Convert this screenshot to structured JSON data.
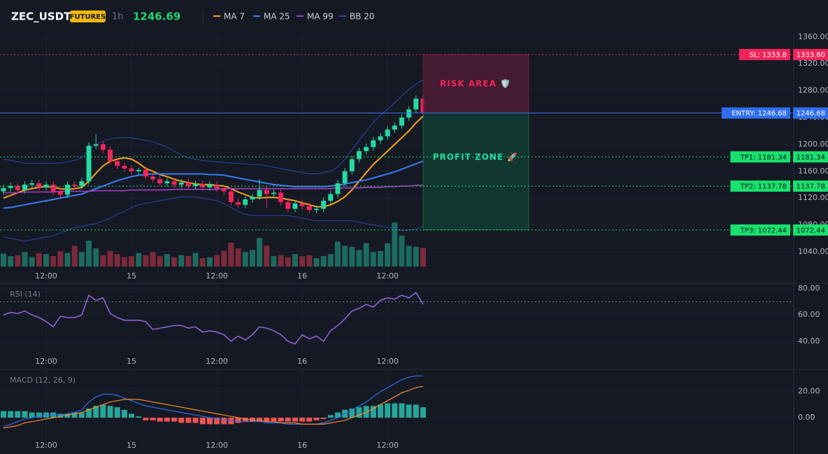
{
  "header": {
    "symbol": "ZEC_USDT",
    "badge": "FUTURES",
    "interval": "1h",
    "price": "1246.69"
  },
  "chart_data": [
    {
      "type": "candlestick",
      "categories": [
        null,
        null,
        null,
        null,
        null,
        null,
        "12:00",
        null,
        null,
        null,
        null,
        null,
        null,
        null,
        null,
        null,
        null,
        null,
        "15",
        null,
        null,
        null,
        null,
        null,
        null,
        null,
        null,
        null,
        null,
        null,
        "12:00",
        null,
        null,
        null,
        null,
        null,
        null,
        null,
        null,
        null,
        null,
        null,
        "16",
        null,
        null,
        null,
        null,
        null,
        null,
        null,
        null,
        null,
        null,
        null,
        "12:00",
        null,
        null,
        null,
        null,
        null
      ],
      "open": [
        1130,
        1135,
        1138,
        1132,
        1140,
        1142,
        1136,
        1140,
        1130,
        1125,
        1140,
        1138,
        1145,
        1198,
        1200,
        1192,
        1175,
        1168,
        1164,
        1160,
        1162,
        1152,
        1148,
        1142,
        1145,
        1140,
        1143,
        1138,
        1141,
        1136,
        1140,
        1134,
        1130,
        1114,
        1110,
        1118,
        1122,
        1132,
        1126,
        1128,
        1114,
        1104,
        1112,
        1108,
        1102,
        1104,
        1116,
        1126,
        1142,
        1160,
        1178,
        1190,
        1196,
        1206,
        1212,
        1222,
        1228,
        1240,
        1252,
        1268
      ],
      "high": [
        1140,
        1143,
        1143,
        1145,
        1147,
        1147,
        1145,
        1145,
        1135,
        1145,
        1145,
        1150,
        1203,
        1215,
        1205,
        1197,
        1180,
        1173,
        1169,
        1165,
        1167,
        1157,
        1153,
        1150,
        1150,
        1148,
        1148,
        1146,
        1146,
        1145,
        1145,
        1139,
        1135,
        1119,
        1123,
        1127,
        1148,
        1137,
        1133,
        1133,
        1119,
        1117,
        1117,
        1113,
        1109,
        1121,
        1131,
        1147,
        1165,
        1183,
        1195,
        1201,
        1211,
        1217,
        1227,
        1233,
        1245,
        1257,
        1273,
        1275
      ],
      "low": [
        1125,
        1130,
        1127,
        1127,
        1135,
        1131,
        1131,
        1125,
        1120,
        1120,
        1133,
        1133,
        1140,
        1193,
        1187,
        1170,
        1163,
        1159,
        1155,
        1155,
        1147,
        1143,
        1137,
        1137,
        1135,
        1135,
        1133,
        1133,
        1131,
        1131,
        1129,
        1125,
        1109,
        1105,
        1105,
        1113,
        1117,
        1105,
        1121,
        1109,
        1099,
        1099,
        1103,
        1097,
        1097,
        1099,
        1111,
        1121,
        1137,
        1155,
        1173,
        1185,
        1191,
        1201,
        1207,
        1217,
        1223,
        1235,
        1247,
        1241
      ],
      "close": [
        1135,
        1138,
        1132,
        1140,
        1142,
        1136,
        1140,
        1130,
        1125,
        1140,
        1138,
        1145,
        1198,
        1200,
        1192,
        1175,
        1168,
        1164,
        1160,
        1162,
        1152,
        1148,
        1142,
        1145,
        1140,
        1143,
        1138,
        1141,
        1136,
        1140,
        1134,
        1130,
        1114,
        1110,
        1118,
        1122,
        1132,
        1126,
        1128,
        1114,
        1104,
        1112,
        1108,
        1102,
        1104,
        1116,
        1126,
        1142,
        1160,
        1178,
        1190,
        1196,
        1206,
        1212,
        1222,
        1228,
        1240,
        1252,
        1268,
        1246.69
      ],
      "up_color": "#26d9a0",
      "down_color": "#f0245a",
      "volume": {
        "values": [
          25,
          20,
          22,
          28,
          18,
          26,
          24,
          20,
          30,
          26,
          40,
          28,
          50,
          35,
          22,
          30,
          24,
          18,
          20,
          26,
          22,
          28,
          20,
          24,
          18,
          22,
          20,
          26,
          16,
          18,
          22,
          30,
          46,
          35,
          28,
          32,
          55,
          40,
          20,
          22,
          18,
          24,
          20,
          22,
          16,
          20,
          24,
          48,
          40,
          38,
          32,
          45,
          28,
          30,
          45,
          85,
          60,
          40,
          38,
          36
        ],
        "ylim": [
          0,
          100
        ],
        "up_color": "#1d6b5e",
        "down_color": "#7c2a3c"
      },
      "overlays": [
        {
          "name": "MA 7",
          "color": "#f7a21b",
          "values": [
            1120,
            1124,
            1128,
            1132,
            1134,
            1136,
            1137,
            1136,
            1134,
            1133,
            1134,
            1136,
            1145,
            1157,
            1168,
            1175,
            1178,
            1180,
            1178,
            1172,
            1164,
            1160,
            1155,
            1152,
            1148,
            1145,
            1143,
            1141,
            1140,
            1140,
            1139,
            1138,
            1134,
            1129,
            1125,
            1121,
            1120,
            1121,
            1121,
            1120,
            1118,
            1116,
            1113,
            1110,
            1107,
            1107,
            1110,
            1115,
            1122,
            1132,
            1145,
            1158,
            1170,
            1180,
            1190,
            1200,
            1210,
            1220,
            1232,
            1242
          ]
        },
        {
          "name": "MA 25",
          "color": "#3b7cf6",
          "values": [
            1105,
            1106,
            1108,
            1110,
            1112,
            1114,
            1116,
            1118,
            1120,
            1122,
            1124,
            1126,
            1130,
            1134,
            1138,
            1142,
            1146,
            1149,
            1152,
            1154,
            1155,
            1156,
            1156,
            1156,
            1156,
            1156,
            1156,
            1156,
            1156,
            1155,
            1155,
            1154,
            1152,
            1150,
            1148,
            1146,
            1144,
            1142,
            1140,
            1139,
            1138,
            1137,
            1137,
            1137,
            1137,
            1137,
            1138,
            1139,
            1141,
            1143,
            1145,
            1147,
            1150,
            1153,
            1156,
            1159,
            1163,
            1167,
            1171,
            1175
          ]
        },
        {
          "name": "MA 99",
          "color": "#a43dc8",
          "values": [
            1128,
            1128,
            1128,
            1129,
            1129,
            1129,
            1129,
            1129,
            1130,
            1130,
            1130,
            1130,
            1130,
            1131,
            1131,
            1131,
            1131,
            1131,
            1132,
            1132,
            1132,
            1132,
            1132,
            1132,
            1133,
            1133,
            1133,
            1133,
            1133,
            1133,
            1133,
            1134,
            1134,
            1134,
            1134,
            1134,
            1134,
            1134,
            1134,
            1134,
            1134,
            1134,
            1134,
            1134,
            1134,
            1134,
            1134,
            1135,
            1135,
            1135,
            1135,
            1136,
            1136,
            1136,
            1137,
            1137,
            1138,
            1138,
            1139,
            1139
          ]
        },
        {
          "name": "BB 20",
          "color": "#2a47a6",
          "upper": [
            1178,
            1176,
            1174,
            1172,
            1172,
            1172,
            1172,
            1172,
            1172,
            1174,
            1176,
            1180,
            1192,
            1200,
            1205,
            1208,
            1210,
            1210,
            1210,
            1208,
            1206,
            1204,
            1200,
            1196,
            1190,
            1184,
            1180,
            1178,
            1176,
            1175,
            1174,
            1173,
            1172,
            1172,
            1171,
            1170,
            1170,
            1168,
            1166,
            1164,
            1162,
            1160,
            1158,
            1156,
            1156,
            1158,
            1160,
            1166,
            1178,
            1192,
            1206,
            1220,
            1232,
            1244,
            1252,
            1262,
            1272,
            1282,
            1290,
            1296
          ],
          "lower": [
            1062,
            1060,
            1058,
            1056,
            1058,
            1060,
            1062,
            1064,
            1068,
            1072,
            1076,
            1078,
            1080,
            1082,
            1086,
            1090,
            1096,
            1100,
            1106,
            1110,
            1112,
            1114,
            1116,
            1118,
            1120,
            1122,
            1122,
            1122,
            1120,
            1118,
            1116,
            1112,
            1106,
            1100,
            1096,
            1094,
            1094,
            1094,
            1094,
            1094,
            1094,
            1092,
            1090,
            1088,
            1086,
            1086,
            1086,
            1086,
            1086,
            1086,
            1084,
            1082,
            1080,
            1078,
            1076,
            1074,
            1072,
            1072,
            1074,
            1078
          ]
        }
      ],
      "ylim": [
        1017,
        1365
      ],
      "yticks": [
        {
          "value": 1360,
          "label": "1360.00"
        },
        {
          "value": 1320,
          "label": "1320.00"
        },
        {
          "value": 1280,
          "label": "1280.00"
        },
        {
          "value": 1240,
          "label": "1240.00"
        },
        {
          "value": 1200,
          "label": "1200.00"
        },
        {
          "value": 1160,
          "label": "1160.00"
        },
        {
          "value": 1120,
          "label": "1120.00"
        },
        {
          "value": 1080,
          "label": "1080.00"
        },
        {
          "value": 1040,
          "label": "1040.00"
        }
      ],
      "levels": [
        {
          "label": "SL: 1333.8",
          "value": 1333.8,
          "value_label": "1333.80",
          "color": "#f0245a",
          "dashed": true
        },
        {
          "label": "ENTRY: 1246.68",
          "value": 1246.68,
          "value_label": "1246.68",
          "color": "#2f6ef0",
          "dashed": false
        },
        {
          "label": "TP1: 1181.34",
          "value": 1181.34,
          "value_label": "1181.34",
          "color": "#19e06e",
          "dashed": true
        },
        {
          "label": "TP2: 1137.78",
          "value": 1137.78,
          "value_label": "1137.78",
          "color": "#19e06e",
          "dashed": true
        },
        {
          "label": "TP3: 1072.44",
          "value": 1072.44,
          "value_label": "1072.44",
          "color": "#19e06e",
          "dashed": true
        }
      ],
      "zones": [
        {
          "label": "RISK AREA 🛡️",
          "color": "#e0245a",
          "fill": "#4a1c33",
          "text_color": "#f0245a"
        },
        {
          "label": "PROFIT ZONE 🚀",
          "color": "#19e06e",
          "fill": "#123a32",
          "text_color": "#26d9a0"
        }
      ]
    },
    {
      "type": "line",
      "title": "RSI (14)",
      "categories": [
        null,
        null,
        null,
        null,
        null,
        null,
        "12:00",
        null,
        null,
        null,
        null,
        null,
        null,
        null,
        null,
        null,
        null,
        null,
        "15",
        null,
        null,
        null,
        null,
        null,
        null,
        null,
        null,
        null,
        null,
        null,
        "12:00",
        null,
        null,
        null,
        null,
        null,
        null,
        null,
        null,
        null,
        null,
        null,
        "16",
        null,
        null,
        null,
        null,
        null,
        null,
        null,
        null,
        null,
        null,
        null,
        "12:00",
        null,
        null,
        null,
        null,
        null
      ],
      "values": [
        60,
        62,
        61,
        63,
        60,
        58,
        55,
        51,
        59,
        58,
        58,
        60,
        75,
        71,
        73,
        61,
        58,
        56,
        56,
        56,
        55,
        49,
        50,
        51,
        52,
        52,
        50,
        51,
        47,
        48,
        47,
        45,
        40,
        44,
        41,
        45,
        51,
        50,
        48,
        45,
        40,
        38,
        45,
        42,
        44,
        40,
        48,
        52,
        57,
        63,
        65,
        68,
        66,
        71,
        73,
        72,
        75,
        73,
        77,
        68
      ],
      "color": "#8a63d2",
      "level": 70,
      "ylim": [
        32,
        84
      ],
      "yticks": [
        {
          "value": 80,
          "label": "80.00"
        },
        {
          "value": 60,
          "label": "60.00"
        },
        {
          "value": 40,
          "label": "40.00"
        }
      ]
    },
    {
      "type": "macd",
      "title": "MACD (12, 26, 9)",
      "categories": [
        null,
        null,
        null,
        null,
        null,
        null,
        "12:00",
        null,
        null,
        null,
        null,
        null,
        null,
        null,
        null,
        null,
        null,
        null,
        "15",
        null,
        null,
        null,
        null,
        null,
        null,
        null,
        null,
        null,
        null,
        null,
        "12:00",
        null,
        null,
        null,
        null,
        null,
        null,
        null,
        null,
        null,
        null,
        null,
        "16",
        null,
        null,
        null,
        null,
        null,
        null,
        null,
        null,
        null,
        null,
        null,
        "12:00",
        null,
        null,
        null,
        null,
        null
      ],
      "histogram": {
        "values": [
          5,
          5,
          5,
          5,
          4,
          4,
          4,
          4,
          3,
          3,
          4,
          4,
          7,
          9,
          10,
          9,
          8,
          6,
          3,
          1,
          -2,
          -2,
          -3,
          -3,
          -3,
          -4,
          -4,
          -4,
          -5,
          -5,
          -5,
          -5,
          -5,
          -4,
          -3,
          -3,
          -3,
          -3,
          -3,
          -3,
          -3,
          -3,
          -3,
          -3,
          -2,
          -1,
          2,
          4,
          6,
          7,
          8,
          9,
          9,
          10,
          11,
          11,
          11,
          10,
          10,
          8
        ],
        "up_color": "#26a69a",
        "down_color": "#ef5350"
      },
      "series": [
        {
          "color": "#2f6ef0",
          "values": [
            -7,
            -5,
            -3,
            -1,
            0,
            1,
            2,
            2,
            2,
            3,
            4,
            6,
            12,
            16,
            18,
            18,
            17,
            15,
            13,
            11,
            9,
            8,
            7,
            6,
            5,
            4,
            3,
            2,
            1,
            0,
            -1,
            -2,
            -2,
            -3,
            -3,
            -3,
            -3,
            -4,
            -4,
            -4,
            -5,
            -5,
            -5,
            -5,
            -5,
            -4,
            -2,
            0,
            3,
            6,
            9,
            12,
            16,
            20,
            23,
            26,
            29,
            31,
            32,
            32
          ]
        },
        {
          "color": "#f7892b",
          "values": [
            -8,
            -7,
            -6,
            -4,
            -3,
            -2,
            -1,
            0,
            1,
            2,
            3,
            4,
            6,
            8,
            10,
            12,
            13,
            14,
            14,
            14,
            13,
            12,
            11,
            10,
            9,
            8,
            7,
            6,
            5,
            4,
            3,
            2,
            1,
            0,
            -1,
            -2,
            -2,
            -3,
            -3,
            -4,
            -4,
            -4,
            -5,
            -5,
            -5,
            -5,
            -4,
            -3,
            -2,
            0,
            2,
            4,
            7,
            10,
            13,
            16,
            19,
            21,
            23,
            24
          ]
        }
      ],
      "ylim": [
        -23,
        37
      ],
      "yticks": [
        {
          "value": 20,
          "label": "20.00"
        },
        {
          "value": 0,
          "label": "0.00"
        }
      ]
    }
  ]
}
